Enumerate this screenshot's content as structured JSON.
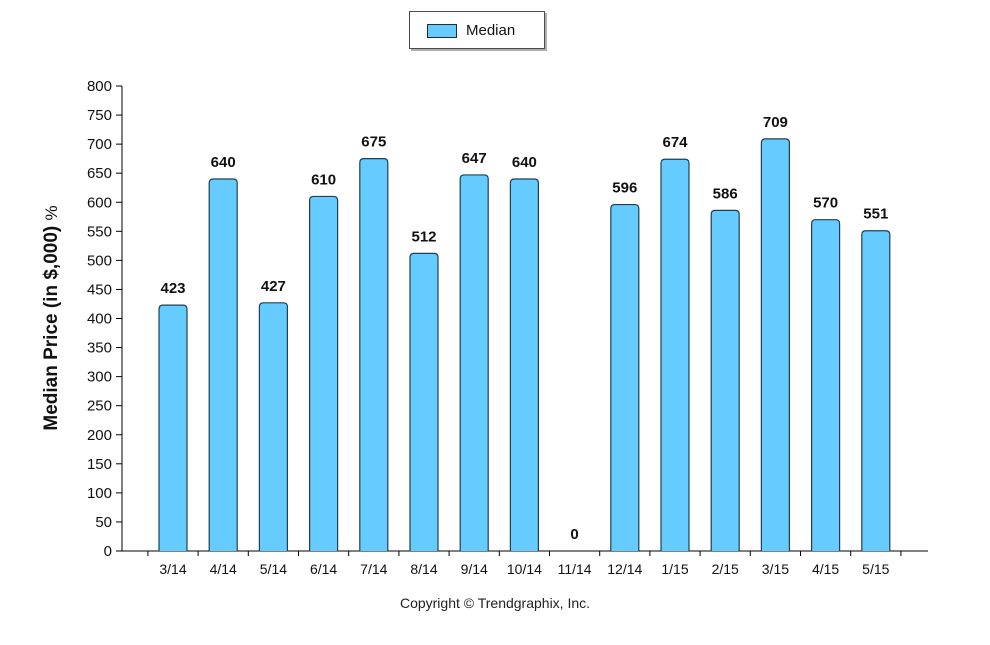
{
  "legend": {
    "label": "Median",
    "swatch_color": "#66ccff"
  },
  "footer": {
    "copyright": "Copyright © Trendgraphix, Inc."
  },
  "chart_data": {
    "type": "bar",
    "title": "",
    "xlabel": "",
    "ylabel": "Median Price (in $,000)",
    "ylabel_suffix": "%",
    "ylim": [
      0,
      800
    ],
    "ytick_step": 50,
    "grid": false,
    "legend_position": "top-center",
    "bar_color": "#66ccff",
    "categories": [
      "3/14",
      "4/14",
      "5/14",
      "6/14",
      "7/14",
      "8/14",
      "9/14",
      "10/14",
      "11/14",
      "12/14",
      "1/15",
      "2/15",
      "3/15",
      "4/15",
      "5/15"
    ],
    "series": [
      {
        "name": "Median",
        "values": [
          423,
          640,
          427,
          610,
          675,
          512,
          647,
          640,
          0,
          596,
          674,
          586,
          709,
          570,
          551
        ]
      }
    ]
  }
}
